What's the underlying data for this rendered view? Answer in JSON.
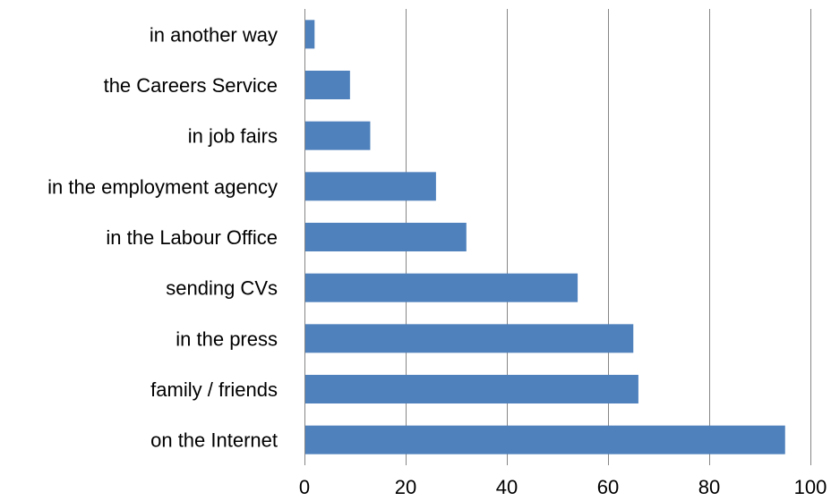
{
  "colors": {
    "bar": "#4f81bd",
    "gridline": "#868686",
    "axis": "#868686",
    "background": "#ffffff",
    "text": "#000000"
  },
  "chart_data": {
    "type": "bar",
    "orientation": "horizontal",
    "title": "",
    "xlabel": "",
    "ylabel": "",
    "categories": [
      "in another way",
      "the Careers Service",
      "in job fairs",
      "in the employment agency",
      "in the Labour Office",
      "sending CVs",
      "in the press",
      "family / friends",
      "on the Internet"
    ],
    "values": [
      2,
      9,
      13,
      26,
      32,
      54,
      65,
      66,
      95
    ],
    "xlim": [
      0,
      100
    ],
    "xticks": [
      "0",
      "20",
      "40",
      "60",
      "80",
      "100"
    ],
    "grid": true,
    "legend": "none"
  }
}
